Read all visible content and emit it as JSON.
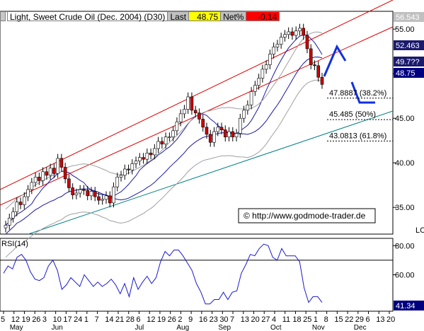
{
  "header": {
    "title": "Light, Sweet Crude Oil (Dec. 2004) (D30)",
    "last_label": "Last",
    "last_value": "48.75",
    "net_label": "Net%",
    "net_value": "-0.14"
  },
  "price_axis": {
    "ticks": [
      "55.00",
      "50.00",
      "45.00",
      "40.00",
      "35.00"
    ],
    "tags": [
      {
        "text": "56.543",
        "bg": "#c0c0c0",
        "fg": "#ffffff"
      },
      {
        "text": "52.463",
        "bg": "#1a1a6e",
        "fg": "#ffffff"
      },
      {
        "text": "49.7??",
        "bg": "#1a1a6e",
        "fg": "#ffffff"
      },
      {
        "text": "48.75",
        "bg": "#000080",
        "fg": "#ffffff"
      }
    ],
    "corner_label": "LC"
  },
  "fib_levels": [
    {
      "label": "47.8887 (38.2%)",
      "value": 47.89
    },
    {
      "label": "45.485 (50%)",
      "value": 45.485
    },
    {
      "label": "43.0813 (61.8%)",
      "value": 43.08
    }
  ],
  "watermark": "© http://www.godmode-trader.de",
  "rsi": {
    "label": "RSI(14)",
    "ticks": [
      "80.00",
      "60.00"
    ],
    "last_value": "41.34",
    "reference_level": 70
  },
  "x_axis": {
    "days": [
      "5",
      "12",
      "19",
      "26",
      "3",
      "10",
      "17",
      "24",
      "1",
      "7",
      "14",
      "21",
      "28",
      "6",
      "12",
      "19",
      "26",
      "2",
      "9",
      "16",
      "23",
      "30",
      "7",
      "13",
      "20",
      "27",
      "4",
      "11",
      "18",
      "25",
      "1",
      "8",
      "15",
      "22",
      "29",
      "6",
      "13",
      "20"
    ],
    "months": [
      {
        "label": "May",
        "day_index": 1
      },
      {
        "label": "Jun",
        "day_index": 5
      },
      {
        "label": "Jul",
        "day_index": 13
      },
      {
        "label": "Aug",
        "day_index": 17
      },
      {
        "label": "Sep",
        "day_index": 21
      },
      {
        "label": "Oct",
        "day_index": 26
      },
      {
        "label": "Nov",
        "day_index": 30
      },
      {
        "label": "Dec",
        "day_index": 34
      }
    ]
  },
  "chart_data": {
    "type": "candlestick",
    "y_range": [
      32,
      57
    ],
    "rsi_range": [
      35,
      85
    ],
    "closes": [
      33.0,
      33.8,
      34.5,
      35.6,
      35.3,
      36.2,
      37.0,
      37.8,
      38.4,
      38.0,
      39.0,
      38.6,
      39.4,
      38.8,
      40.5,
      39.5,
      38.2,
      37.2,
      36.4,
      36.6,
      37.0,
      36.9,
      36.3,
      36.8,
      36.2,
      35.8,
      35.9,
      36.3,
      35.5,
      37.3,
      38.4,
      38.6,
      39.3,
      39.2,
      39.9,
      40.2,
      40.6,
      40.4,
      41.1,
      40.9,
      41.6,
      42.4,
      42.1,
      42.9,
      42.9,
      43.6,
      44.6,
      45.5,
      46.0,
      47.4,
      45.9,
      45.6,
      44.9,
      44.0,
      43.2,
      42.3,
      43.5,
      44.0,
      43.7,
      42.9,
      43.5,
      42.9,
      43.3,
      45.0,
      45.9,
      46.5,
      48.0,
      48.7,
      49.5,
      50.5,
      51.0,
      52.2,
      53.0,
      53.3,
      54.1,
      54.4,
      54.7,
      54.3,
      54.8,
      55.1,
      54.3,
      52.8,
      51.0,
      50.9,
      49.6,
      48.8
    ],
    "rsi_values": [
      61,
      66,
      64,
      72,
      74,
      70,
      62,
      57,
      56,
      58,
      66,
      70,
      63,
      50,
      53,
      58,
      55,
      52,
      60,
      56,
      52,
      55,
      52,
      54,
      57,
      53,
      47,
      54,
      45,
      58,
      50,
      55,
      59,
      54,
      58,
      69,
      76,
      73,
      77,
      77,
      73,
      68,
      63,
      54,
      48,
      40,
      40,
      43,
      43,
      48,
      43,
      48,
      49,
      61,
      67,
      74,
      73,
      78,
      81,
      80,
      72,
      70,
      78,
      73,
      73,
      73,
      69,
      51,
      41,
      45,
      45,
      41
    ]
  }
}
